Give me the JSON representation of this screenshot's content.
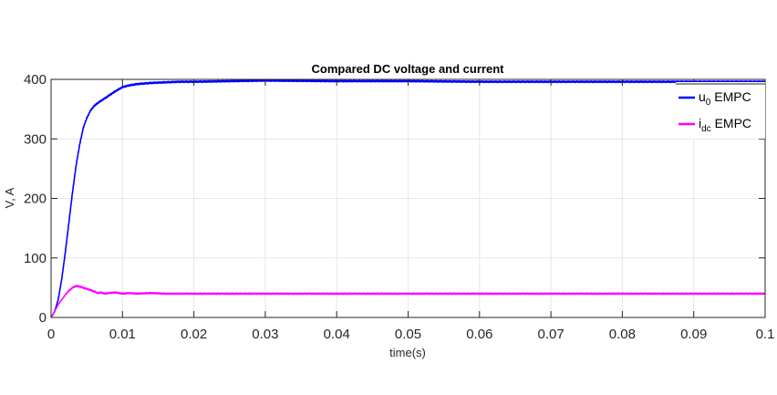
{
  "chart_data": {
    "type": "line",
    "title": "Compared DC voltage and current",
    "xlabel": "time(s)",
    "ylabel": "V, A",
    "xlim": [
      0,
      0.1
    ],
    "ylim": [
      0,
      400
    ],
    "xticks": [
      0,
      0.01,
      0.02,
      0.03,
      0.04,
      0.05,
      0.06,
      0.07,
      0.08,
      0.09,
      0.1
    ],
    "xtick_labels": [
      "0",
      "0.01",
      "0.02",
      "0.03",
      "0.04",
      "0.05",
      "0.06",
      "0.07",
      "0.08",
      "0.09",
      "0.1"
    ],
    "yticks": [
      0,
      100,
      200,
      300,
      400
    ],
    "ytick_labels": [
      "0",
      "100",
      "200",
      "300",
      "400"
    ],
    "grid": true,
    "legend_position": "top-right",
    "series": [
      {
        "name": "u0 EMPC",
        "legend_main": "u",
        "legend_sub": "0",
        "legend_rest": " EMPC",
        "color": "#0000ff",
        "x": [
          0,
          0.0005,
          0.001,
          0.0015,
          0.002,
          0.0025,
          0.003,
          0.0035,
          0.004,
          0.0045,
          0.005,
          0.0055,
          0.006,
          0.0065,
          0.007,
          0.008,
          0.009,
          0.01,
          0.011,
          0.012,
          0.014,
          0.016,
          0.018,
          0.02,
          0.025,
          0.03,
          0.04,
          0.05,
          0.06,
          0.07,
          0.08,
          0.09,
          0.1
        ],
        "y": [
          0,
          10,
          30,
          65,
          110,
          160,
          210,
          255,
          290,
          318,
          335,
          347,
          355,
          360,
          364,
          372,
          380,
          387,
          390,
          392,
          394,
          395,
          396,
          396,
          397,
          398,
          397,
          397,
          396,
          396,
          396,
          396,
          396
        ]
      },
      {
        "name": "idc EMPC",
        "legend_main": "i",
        "legend_sub": "dc",
        "legend_rest": " EMPC",
        "color": "#ff00ff",
        "x": [
          0,
          0.0005,
          0.001,
          0.0015,
          0.002,
          0.0025,
          0.003,
          0.0035,
          0.004,
          0.0045,
          0.005,
          0.0055,
          0.006,
          0.0065,
          0.007,
          0.0075,
          0.008,
          0.009,
          0.01,
          0.011,
          0.012,
          0.014,
          0.016,
          0.02,
          0.03,
          0.04,
          0.05,
          0.06,
          0.07,
          0.08,
          0.09,
          0.1
        ],
        "y": [
          0,
          10,
          22,
          30,
          38,
          45,
          50,
          53,
          52,
          50,
          48,
          46,
          44,
          41,
          42,
          40,
          41,
          42,
          40,
          41,
          40,
          41,
          40,
          40,
          40,
          40,
          40,
          40,
          40,
          40,
          40,
          40
        ]
      }
    ]
  }
}
